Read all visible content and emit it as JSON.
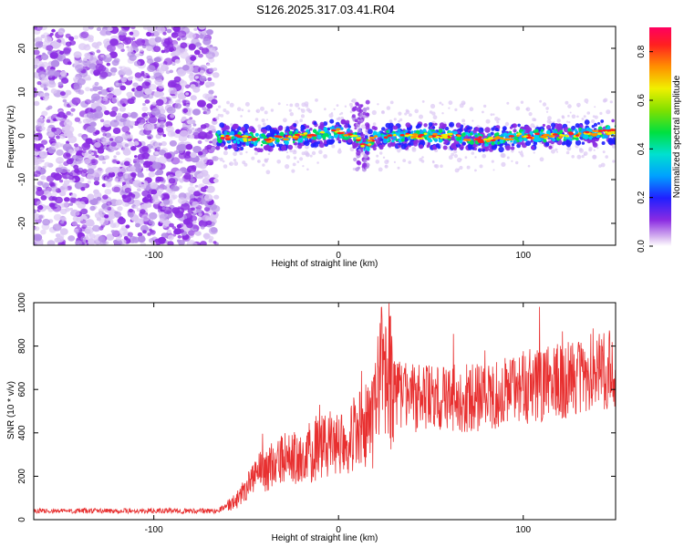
{
  "title": "S126.2025.317.03.41.R04",
  "colors": {
    "background": "#ffffff",
    "frame": "#000000",
    "snr_line": "#e83030",
    "noise": "#8a2be2"
  },
  "chart_data": [
    {
      "type": "heatmap",
      "xlabel": "Height of straight line (km)",
      "ylabel": "Frequency (Hz)",
      "xlim": [
        -165,
        150
      ],
      "ylim": [
        -25,
        25
      ],
      "x_ticks": [
        -100,
        0,
        100
      ],
      "y_ticks": [
        -20,
        -10,
        0,
        10,
        20
      ],
      "grid": false,
      "colorbar": {
        "label": "Normalized spectral amplitude",
        "range": [
          0.0,
          0.9
        ],
        "ticks": [
          0.0,
          0.2,
          0.4,
          0.6,
          0.8
        ],
        "colormap": "rainbow"
      },
      "regions": [
        {
          "x_range": [
            -165,
            -66
          ],
          "description": "diffuse noise",
          "level": 0.1
        },
        {
          "x_range": [
            -66,
            150
          ],
          "description": "signal band near 0 Hz",
          "level": 0.9
        }
      ],
      "ridge": {
        "x": [
          -66,
          -40,
          -20,
          0,
          10,
          14,
          20,
          40,
          60,
          80,
          100,
          120,
          150
        ],
        "freq": [
          0,
          -1,
          0,
          1,
          0,
          -3,
          0,
          0,
          0,
          -1,
          0,
          0,
          1
        ]
      }
    },
    {
      "type": "line",
      "xlabel": "Height of straight line (km)",
      "ylabel": "SNR (10 * v/v)",
      "xlim": [
        -165,
        150
      ],
      "ylim": [
        0,
        1000
      ],
      "x_ticks": [
        -100,
        0,
        100
      ],
      "y_ticks": [
        0,
        200,
        400,
        600,
        800,
        1000
      ],
      "grid": false,
      "series": [
        {
          "x": [
            -165,
            -140,
            -120,
            -100,
            -80,
            -66,
            -55,
            -50,
            -45,
            -40,
            -30,
            -20,
            -10,
            0,
            10,
            17,
            20,
            25,
            30,
            40,
            60,
            80,
            100,
            120,
            140,
            150
          ],
          "y": [
            40,
            40,
            40,
            40,
            40,
            40,
            90,
            160,
            200,
            230,
            270,
            300,
            330,
            360,
            400,
            440,
            520,
            700,
            600,
            560,
            560,
            560,
            610,
            640,
            680,
            700
          ]
        }
      ]
    }
  ]
}
